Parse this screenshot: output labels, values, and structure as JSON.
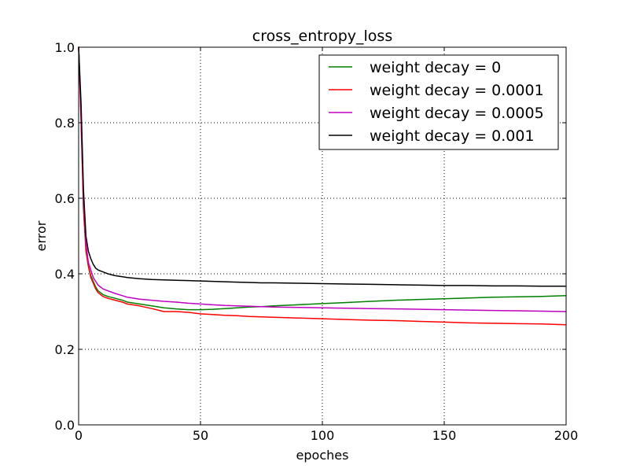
{
  "chart_data": {
    "type": "line",
    "title": "cross_entropy_loss",
    "xlabel": "epoches",
    "ylabel": "error",
    "xlim": [
      0,
      200
    ],
    "ylim": [
      0.0,
      1.0
    ],
    "xticks": [
      0,
      50,
      100,
      150,
      200
    ],
    "xtick_labels": [
      "0",
      "50",
      "100",
      "150",
      "200"
    ],
    "yticks": [
      0.0,
      0.2,
      0.4,
      0.6,
      0.8,
      1.0
    ],
    "ytick_labels": [
      "0.0",
      "0.2",
      "0.4",
      "0.6",
      "0.8",
      "1.0"
    ],
    "grid": true,
    "legend_position": "top-right",
    "series": [
      {
        "name": "weight decay = 0",
        "color": "#008000",
        "points": [
          [
            0,
            1.0
          ],
          [
            1,
            0.82
          ],
          [
            2,
            0.58
          ],
          [
            3,
            0.47
          ],
          [
            4,
            0.42
          ],
          [
            5,
            0.395
          ],
          [
            6,
            0.38
          ],
          [
            7,
            0.365
          ],
          [
            8,
            0.355
          ],
          [
            10,
            0.345
          ],
          [
            12,
            0.34
          ],
          [
            15,
            0.335
          ],
          [
            18,
            0.33
          ],
          [
            20,
            0.325
          ],
          [
            25,
            0.32
          ],
          [
            30,
            0.315
          ],
          [
            35,
            0.31
          ],
          [
            40,
            0.307
          ],
          [
            45,
            0.305
          ],
          [
            50,
            0.305
          ],
          [
            55,
            0.306
          ],
          [
            60,
            0.308
          ],
          [
            65,
            0.31
          ],
          [
            70,
            0.312
          ],
          [
            75,
            0.313
          ],
          [
            80,
            0.315
          ],
          [
            90,
            0.318
          ],
          [
            100,
            0.321
          ],
          [
            110,
            0.324
          ],
          [
            120,
            0.327
          ],
          [
            130,
            0.33
          ],
          [
            140,
            0.332
          ],
          [
            150,
            0.334
          ],
          [
            160,
            0.336
          ],
          [
            170,
            0.338
          ],
          [
            180,
            0.339
          ],
          [
            190,
            0.34
          ],
          [
            200,
            0.342
          ]
        ]
      },
      {
        "name": "weight decay = 0.0001",
        "color": "#ff0000",
        "points": [
          [
            0,
            1.0
          ],
          [
            1,
            0.8
          ],
          [
            2,
            0.57
          ],
          [
            3,
            0.46
          ],
          [
            4,
            0.42
          ],
          [
            5,
            0.39
          ],
          [
            6,
            0.375
          ],
          [
            7,
            0.36
          ],
          [
            8,
            0.35
          ],
          [
            10,
            0.34
          ],
          [
            12,
            0.335
          ],
          [
            15,
            0.33
          ],
          [
            18,
            0.325
          ],
          [
            20,
            0.32
          ],
          [
            25,
            0.315
          ],
          [
            30,
            0.308
          ],
          [
            35,
            0.3
          ],
          [
            40,
            0.3
          ],
          [
            45,
            0.298
          ],
          [
            50,
            0.294
          ],
          [
            55,
            0.292
          ],
          [
            60,
            0.29
          ],
          [
            65,
            0.289
          ],
          [
            70,
            0.287
          ],
          [
            75,
            0.286
          ],
          [
            80,
            0.285
          ],
          [
            85,
            0.284
          ],
          [
            90,
            0.283
          ],
          [
            95,
            0.282
          ],
          [
            100,
            0.281
          ],
          [
            110,
            0.279
          ],
          [
            120,
            0.277
          ],
          [
            130,
            0.276
          ],
          [
            140,
            0.274
          ],
          [
            150,
            0.272
          ],
          [
            160,
            0.27
          ],
          [
            170,
            0.269
          ],
          [
            180,
            0.268
          ],
          [
            190,
            0.267
          ],
          [
            200,
            0.265
          ]
        ]
      },
      {
        "name": "weight decay = 0.0005",
        "color": "#bf00bf",
        "points": [
          [
            0,
            1.0
          ],
          [
            1,
            0.82
          ],
          [
            2,
            0.6
          ],
          [
            3,
            0.48
          ],
          [
            4,
            0.43
          ],
          [
            5,
            0.41
          ],
          [
            6,
            0.39
          ],
          [
            7,
            0.38
          ],
          [
            8,
            0.37
          ],
          [
            10,
            0.36
          ],
          [
            12,
            0.355
          ],
          [
            15,
            0.348
          ],
          [
            18,
            0.342
          ],
          [
            20,
            0.338
          ],
          [
            25,
            0.333
          ],
          [
            30,
            0.33
          ],
          [
            35,
            0.327
          ],
          [
            40,
            0.325
          ],
          [
            45,
            0.322
          ],
          [
            50,
            0.32
          ],
          [
            55,
            0.318
          ],
          [
            60,
            0.316
          ],
          [
            65,
            0.315
          ],
          [
            70,
            0.314
          ],
          [
            75,
            0.313
          ],
          [
            80,
            0.312
          ],
          [
            90,
            0.311
          ],
          [
            100,
            0.31
          ],
          [
            110,
            0.309
          ],
          [
            120,
            0.308
          ],
          [
            130,
            0.307
          ],
          [
            140,
            0.306
          ],
          [
            150,
            0.305
          ],
          [
            160,
            0.304
          ],
          [
            170,
            0.303
          ],
          [
            180,
            0.302
          ],
          [
            190,
            0.301
          ],
          [
            200,
            0.3
          ]
        ]
      },
      {
        "name": "weight decay = 0.001",
        "color": "#000000",
        "points": [
          [
            0,
            1.0
          ],
          [
            1,
            0.85
          ],
          [
            2,
            0.62
          ],
          [
            3,
            0.5
          ],
          [
            4,
            0.46
          ],
          [
            5,
            0.44
          ],
          [
            6,
            0.425
          ],
          [
            7,
            0.415
          ],
          [
            8,
            0.41
          ],
          [
            10,
            0.405
          ],
          [
            12,
            0.4
          ],
          [
            15,
            0.395
          ],
          [
            18,
            0.392
          ],
          [
            20,
            0.39
          ],
          [
            25,
            0.387
          ],
          [
            30,
            0.385
          ],
          [
            35,
            0.384
          ],
          [
            40,
            0.383
          ],
          [
            45,
            0.382
          ],
          [
            50,
            0.381
          ],
          [
            55,
            0.38
          ],
          [
            60,
            0.379
          ],
          [
            65,
            0.378
          ],
          [
            70,
            0.377
          ],
          [
            75,
            0.376
          ],
          [
            80,
            0.376
          ],
          [
            90,
            0.375
          ],
          [
            100,
            0.374
          ],
          [
            110,
            0.373
          ],
          [
            120,
            0.372
          ],
          [
            130,
            0.371
          ],
          [
            140,
            0.37
          ],
          [
            150,
            0.369
          ],
          [
            160,
            0.369
          ],
          [
            170,
            0.368
          ],
          [
            180,
            0.368
          ],
          [
            190,
            0.367
          ],
          [
            200,
            0.367
          ]
        ]
      }
    ]
  }
}
